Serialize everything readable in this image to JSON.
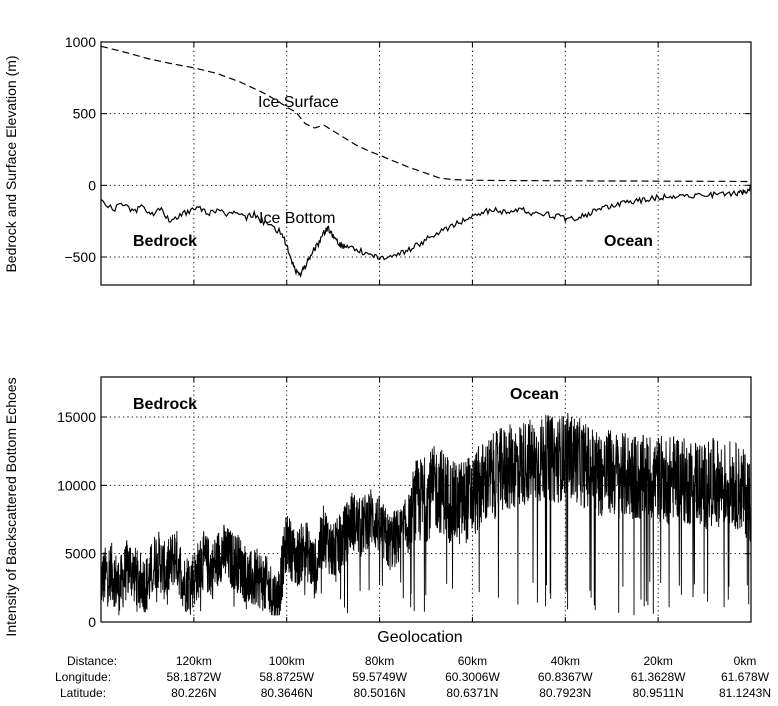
{
  "chart_data": [
    {
      "type": "line",
      "xlabel": "",
      "ylabel": "Bedrock and Surface Elevation (m)",
      "ylim": [
        -700,
        1000
      ],
      "yticks": [
        1000,
        500,
        0,
        -500
      ],
      "ytick_labels": [
        "1000",
        "500",
        "0",
        "−500"
      ],
      "x_unit": "km",
      "xlim": [
        140,
        0
      ],
      "xticks": [
        120,
        100,
        80,
        60,
        40,
        20,
        0
      ],
      "grid": true,
      "series": [
        {
          "name": "Ice Surface",
          "style": "dashed",
          "x": [
            140,
            135,
            130,
            125,
            120,
            115,
            110,
            105,
            102,
            100,
            98,
            96,
            94,
            92,
            90,
            88,
            85,
            82,
            80,
            77,
            74,
            70,
            67,
            64,
            62,
            60,
            57,
            55,
            50,
            45,
            40,
            35,
            30,
            25,
            20,
            15,
            10,
            5,
            2,
            0
          ],
          "y": [
            970,
            930,
            885,
            850,
            820,
            780,
            720,
            645,
            590,
            545,
            510,
            430,
            400,
            420,
            380,
            340,
            280,
            235,
            210,
            170,
            130,
            85,
            50,
            40,
            38,
            35,
            35,
            34,
            33,
            32,
            31,
            31,
            30,
            30,
            29,
            29,
            28,
            28,
            27,
            27
          ]
        },
        {
          "name": "Ice Bottom",
          "style": "solid",
          "x": [
            140,
            137,
            135,
            133,
            131,
            129,
            127,
            125,
            123,
            121,
            119,
            117,
            115,
            113,
            111,
            109,
            107,
            105,
            103,
            101,
            100,
            99,
            98,
            97,
            96,
            95,
            94,
            93,
            92,
            91,
            90,
            89,
            88,
            87,
            85,
            83,
            81,
            79,
            77,
            75,
            73,
            71,
            69,
            67,
            65,
            63,
            61,
            59,
            57,
            55,
            53,
            51,
            49,
            47,
            45,
            43,
            41,
            39,
            37,
            35,
            33,
            31,
            29,
            27,
            25,
            23,
            21,
            19,
            17,
            15,
            13,
            11,
            9,
            7,
            5,
            3,
            2,
            1,
            0
          ],
          "y": [
            -110,
            -160,
            -130,
            -180,
            -150,
            -200,
            -170,
            -250,
            -210,
            -180,
            -160,
            -200,
            -170,
            -210,
            -180,
            -230,
            -200,
            -260,
            -300,
            -330,
            -420,
            -530,
            -600,
            -620,
            -560,
            -500,
            -440,
            -400,
            -330,
            -300,
            -360,
            -400,
            -430,
            -420,
            -450,
            -470,
            -500,
            -510,
            -480,
            -470,
            -440,
            -400,
            -360,
            -330,
            -290,
            -260,
            -230,
            -200,
            -180,
            -170,
            -190,
            -180,
            -170,
            -195,
            -190,
            -210,
            -220,
            -240,
            -220,
            -200,
            -170,
            -150,
            -140,
            -120,
            -110,
            -100,
            -90,
            -80,
            -75,
            -70,
            -70,
            -68,
            -65,
            -62,
            -60,
            -58,
            -50,
            -40,
            -10
          ]
        }
      ],
      "annotations": [
        "Ice Surface",
        "Ice Bottom",
        "Bedrock",
        "Ocean"
      ]
    },
    {
      "type": "line",
      "xlabel": "Geolocation",
      "ylabel": "Intensity of Backscattered Bottom Echoes",
      "ylim": [
        0,
        17000
      ],
      "yticks": [
        15000,
        10000,
        5000,
        0
      ],
      "ytick_labels": [
        "15000",
        "10000",
        "5000",
        "0"
      ],
      "x_unit": "km",
      "xlim": [
        140,
        0
      ],
      "xticks": [
        120,
        100,
        80,
        60,
        40,
        20,
        0
      ],
      "grid": true,
      "series": [
        {
          "style": "solid",
          "x": [
            140,
            138,
            136,
            134,
            132,
            130,
            128,
            126,
            124,
            122,
            120,
            118,
            116,
            114,
            112,
            110,
            108,
            106,
            104,
            102,
            100,
            98,
            96,
            94,
            92,
            90,
            88,
            86,
            84,
            82,
            80,
            78,
            76,
            74,
            72,
            70,
            68,
            66,
            64,
            62,
            60,
            58,
            56,
            54,
            52,
            50,
            48,
            46,
            44,
            42,
            40,
            38,
            36,
            34,
            32,
            30,
            28,
            26,
            24,
            22,
            20,
            18,
            16,
            14,
            12,
            10,
            8,
            6,
            4,
            2,
            0
          ],
          "y": [
            3000,
            3800,
            2500,
            4200,
            3000,
            2800,
            4800,
            3500,
            5000,
            2800,
            3200,
            4500,
            3800,
            5200,
            4600,
            4200,
            3000,
            3200,
            2500,
            1500,
            6000,
            4500,
            5500,
            3800,
            6500,
            5000,
            6000,
            7500,
            6800,
            7800,
            7000,
            5800,
            6200,
            7000,
            8800,
            9000,
            9800,
            9500,
            8500,
            8800,
            9200,
            10000,
            10500,
            11000,
            11300,
            11500,
            11800,
            11600,
            12000,
            11800,
            12200,
            12000,
            11500,
            11200,
            10800,
            11000,
            10600,
            10800,
            10400,
            10600,
            10500,
            10300,
            10800,
            10200,
            10400,
            9900,
            10300,
            10000,
            10200,
            9600,
            9000
          ],
          "noise": {
            "min": 500,
            "max": 16000
          }
        }
      ],
      "annotations": [
        "Bedrock",
        "Ocean"
      ]
    }
  ],
  "geolocation": {
    "row_labels": [
      "Distance:",
      "Longitude:",
      "Latitude:"
    ],
    "columns": [
      {
        "distance": "120km",
        "longitude": "58.1872W",
        "latitude": "80.226N"
      },
      {
        "distance": "100km",
        "longitude": "58.8725W",
        "latitude": "80.3646N"
      },
      {
        "distance": "80km",
        "longitude": "59.5749W",
        "latitude": "80.5016N"
      },
      {
        "distance": "60km",
        "longitude": "60.3006W",
        "latitude": "80.6371N"
      },
      {
        "distance": "40km",
        "longitude": "60.8367W",
        "latitude": "80.7923N"
      },
      {
        "distance": "20km",
        "longitude": "61.3628W",
        "latitude": "80.9511N"
      },
      {
        "distance": "0km",
        "longitude": "61.678W",
        "latitude": "81.1243N"
      }
    ]
  }
}
